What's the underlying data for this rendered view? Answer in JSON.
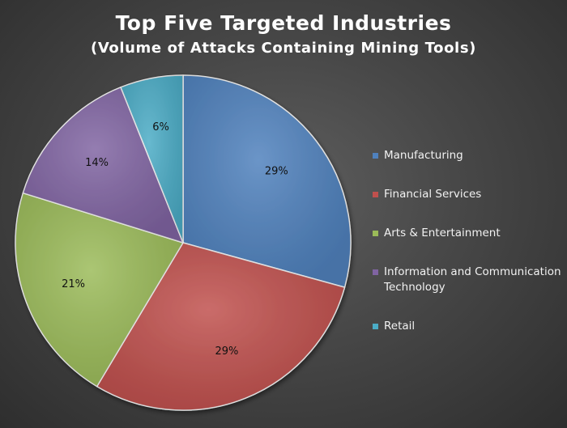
{
  "chart_data": {
    "type": "pie",
    "title": "Top Five Targeted Industries",
    "subtitle": "(Volume of Attacks Containing Mining Tools)",
    "legend_position": "right",
    "slices": [
      {
        "label": "Manufacturing",
        "value": 29,
        "value_label": "29%",
        "color": "#4f81bd"
      },
      {
        "label": "Financial Services",
        "value": 29,
        "value_label": "29%",
        "color": "#c0504d"
      },
      {
        "label": "Arts & Entertainment",
        "value": 21,
        "value_label": "21%",
        "color": "#9bbb59"
      },
      {
        "label": "Information and Communication Technology",
        "value": 14,
        "value_label": "14%",
        "color": "#8064a2"
      },
      {
        "label": "Retail",
        "value": 6,
        "value_label": "6%",
        "color": "#4bacc6"
      }
    ]
  }
}
